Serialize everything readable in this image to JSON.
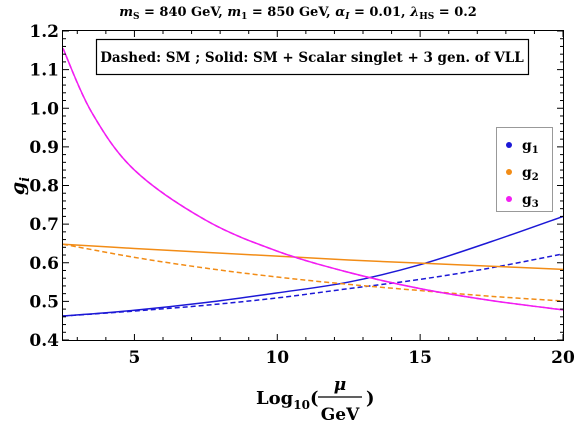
{
  "chart_data": {
    "type": "line",
    "title": {
      "mS": "m",
      "mS_sub": "S",
      "mS_val": " = 840 GeV, ",
      "m1": "m",
      "m1_sub": "1",
      "m1_val": " = 850 GeV, ",
      "alpha": "α",
      "alpha_sub": "I",
      "alpha_val": " = 0.01, ",
      "lambda": "λ",
      "lambda_sub": "HS",
      "lambda_val": " = 0.2"
    },
    "annotation": "Dashed: SM  ;  Solid: SM + Scalar singlet + 3 gen. of VLL",
    "ylabel": {
      "main": "g",
      "sub": "i"
    },
    "xlabel": {
      "pre": "Log",
      "sub": "10",
      "open": "(",
      "num": "μ",
      "den": "GeV",
      "close": ")"
    },
    "xlim": [
      2.5,
      20
    ],
    "ylim": [
      0.4,
      1.2
    ],
    "xticks": [
      5,
      10,
      15,
      20
    ],
    "yticks": [
      0.4,
      0.5,
      0.6,
      0.7,
      0.8,
      0.9,
      1.0,
      1.1,
      1.2
    ],
    "ytick_labels": [
      "0.4",
      "0.5",
      "0.6",
      "0.7",
      "0.8",
      "0.9",
      "1.0",
      "1.1",
      "1.2"
    ],
    "legend": {
      "position": "right",
      "items": [
        {
          "name": "g",
          "sub": "1",
          "color": "#1c18d6"
        },
        {
          "name": "g",
          "sub": "2",
          "color": "#f28c16"
        },
        {
          "name": "g",
          "sub": "3",
          "color": "#f21ef2"
        }
      ]
    },
    "series": [
      {
        "name": "g1 SM",
        "color": "#1c18d6",
        "style": "dashed",
        "x": [
          2.5,
          5,
          7.5,
          10,
          12.5,
          15,
          17.5,
          20
        ],
        "y": [
          0.462,
          0.475,
          0.49,
          0.509,
          0.533,
          0.557,
          0.587,
          0.623
        ]
      },
      {
        "name": "g1 SM + Scalar singlet + 3 gen. of VLL",
        "color": "#1c18d6",
        "style": "solid",
        "x": [
          2.5,
          5,
          7.5,
          10,
          12.5,
          15,
          17.5,
          20
        ],
        "y": [
          0.462,
          0.477,
          0.497,
          0.522,
          0.55,
          0.595,
          0.655,
          0.72
        ]
      },
      {
        "name": "g2 SM",
        "color": "#f28c16",
        "style": "dashed",
        "x": [
          2.5,
          5,
          7.5,
          10,
          12.5,
          15,
          17.5,
          20
        ],
        "y": [
          0.648,
          0.614,
          0.586,
          0.563,
          0.544,
          0.528,
          0.513,
          0.501
        ]
      },
      {
        "name": "g2 SM + Scalar singlet + 3 gen. of VLL",
        "color": "#f28c16",
        "style": "solid",
        "x": [
          2.5,
          5,
          7.5,
          10,
          12.5,
          15,
          17.5,
          20
        ],
        "y": [
          0.648,
          0.637,
          0.627,
          0.617,
          0.607,
          0.599,
          0.591,
          0.583
        ]
      },
      {
        "name": "g3 SM",
        "color": "#f21ef2",
        "style": "dashed",
        "x": [
          2.5,
          3.5,
          5,
          7.5,
          10,
          12.5,
          15,
          17.5,
          20
        ],
        "y": [
          1.155,
          0.99,
          0.84,
          0.71,
          0.63,
          0.575,
          0.533,
          0.502,
          0.478
        ]
      },
      {
        "name": "g3 SM + Scalar singlet + 3 gen. of VLL",
        "color": "#f21ef2",
        "style": "solid",
        "x": [
          2.5,
          3.5,
          5,
          7.5,
          10,
          12.5,
          15,
          17.5,
          20
        ],
        "y": [
          1.155,
          0.99,
          0.84,
          0.71,
          0.63,
          0.575,
          0.533,
          0.502,
          0.478
        ]
      }
    ]
  }
}
